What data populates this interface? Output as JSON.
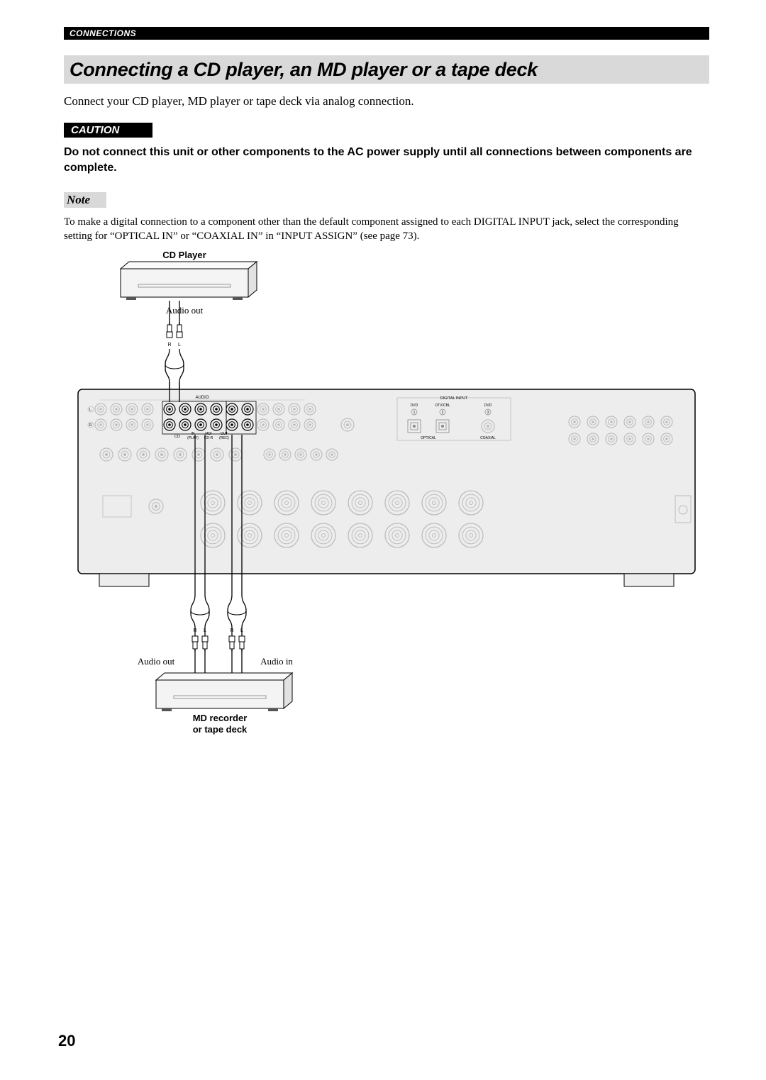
{
  "header": {
    "section": "CONNECTIONS",
    "title": "Connecting a CD player, an MD player or a tape deck"
  },
  "intro": "Connect your CD player, MD player or tape deck via analog connection.",
  "caution": {
    "label": "CAUTION",
    "body": "Do not connect this unit or other components to the AC power supply until all connections between components are complete."
  },
  "note": {
    "label": "Note",
    "body": "To make a digital connection to a component other than the default component assigned to each DIGITAL INPUT jack, select the corresponding setting for “OPTICAL IN” or “COAXIAL IN” in “INPUT ASSIGN” (see page 73)."
  },
  "diagram": {
    "cd_player_label": "CD Player",
    "cd_audio_out": "Audio out",
    "md_audio_out": "Audio out",
    "md_audio_in": "Audio in",
    "md_label_line1": "MD recorder",
    "md_label_line2": "or tape deck",
    "plugs": {
      "R": "R",
      "L": "L"
    },
    "panel": {
      "audio_label": "AUDIO",
      "digital_label": "DIGITAL INPUT",
      "optical_label": "OPTICAL",
      "coaxial_label": "COAXIAL",
      "dvd": "DVD",
      "dtvcbl": "DTV/CBL",
      "n1": "1",
      "n2": "2",
      "n3": "3",
      "cd": "CD",
      "md_play_in": "IN",
      "md_play": "MD/",
      "cdr_play": "CD-R",
      "rec_out": "OUT",
      "play": "(PLAY)",
      "rec": "(REC)"
    },
    "colors": {
      "panel_fill": "#ededed",
      "panel_stroke": "#000000",
      "device_fill": "#f4f4f4",
      "jack_dim": "#bdbdbd",
      "jack_dark": "#000000",
      "highlight": "#000000",
      "bg": "#ffffff"
    }
  },
  "page_number": "20"
}
